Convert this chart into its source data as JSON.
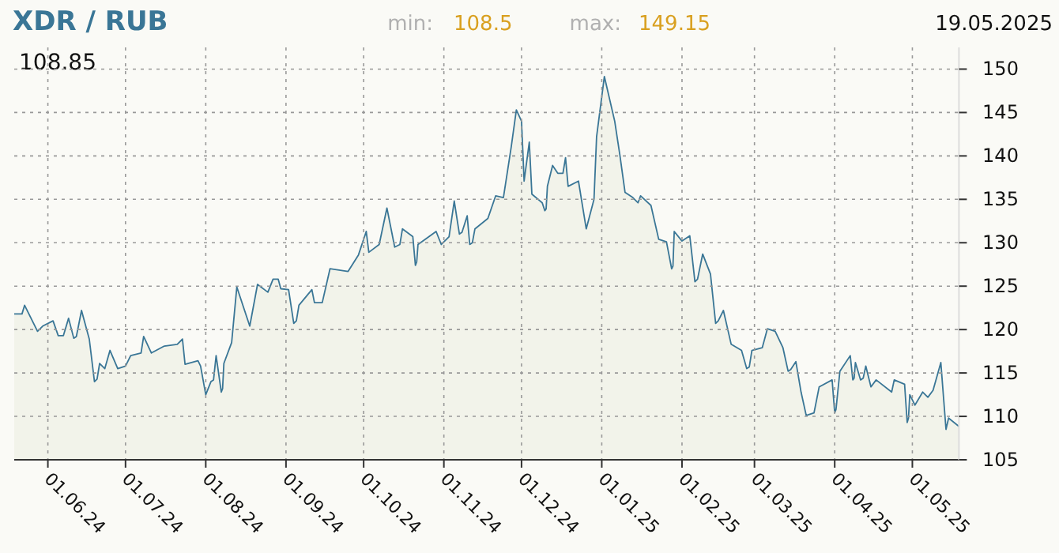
{
  "chart_data": {
    "type": "area",
    "title": "XDR / RUB",
    "annotations": [
      "108.85",
      "min:",
      "108.5",
      "max:",
      "149.15",
      "19.05.2025"
    ],
    "x": [
      "2024-05-19",
      "2024-05-22",
      "2024-05-23",
      "2024-05-28",
      "2024-05-30",
      "2024-06-03",
      "2024-06-05",
      "2024-06-07",
      "2024-06-09",
      "2024-06-11",
      "2024-06-12",
      "2024-06-14",
      "2024-06-17",
      "2024-06-19",
      "2024-06-20",
      "2024-06-21",
      "2024-06-23",
      "2024-06-25",
      "2024-06-28",
      "2024-07-01",
      "2024-07-03",
      "2024-07-07",
      "2024-07-08",
      "2024-07-11",
      "2024-07-16",
      "2024-07-21",
      "2024-07-23",
      "2024-07-24",
      "2024-07-29",
      "2024-07-30",
      "2024-08-01",
      "2024-08-03",
      "2024-08-04",
      "2024-08-05",
      "2024-08-07",
      "2024-08-07T12:00",
      "2024-08-08",
      "2024-08-11",
      "2024-08-13",
      "2024-08-16",
      "2024-08-18",
      "2024-08-21",
      "2024-08-25",
      "2024-08-27",
      "2024-08-29",
      "2024-08-30",
      "2024-09-02",
      "2024-09-04",
      "2024-09-05",
      "2024-09-06",
      "2024-09-11",
      "2024-09-12",
      "2024-09-15",
      "2024-09-18",
      "2024-09-25",
      "2024-09-29",
      "2024-10-02",
      "2024-10-03",
      "2024-10-07",
      "2024-10-10",
      "2024-10-13",
      "2024-10-15",
      "2024-10-16",
      "2024-10-20",
      "2024-10-21",
      "2024-10-21T12:00",
      "2024-10-22",
      "2024-10-29",
      "2024-10-31",
      "2024-11-03",
      "2024-11-05",
      "2024-11-07",
      "2024-11-08",
      "2024-11-10",
      "2024-11-11",
      "2024-11-12",
      "2024-11-13",
      "2024-11-18",
      "2024-11-21",
      "2024-11-24",
      "2024-11-27",
      "2024-11-29",
      "2024-12-01",
      "2024-12-02",
      "2024-12-04",
      "2024-12-05",
      "2024-12-09",
      "2024-12-10",
      "2024-12-10T12:00",
      "2024-12-11",
      "2024-12-13",
      "2024-12-15",
      "2024-12-17",
      "2024-12-18",
      "2024-12-19",
      "2024-12-23",
      "2024-12-26",
      "2024-12-29",
      "2024-12-30",
      "2025-01-02",
      "2025-01-06",
      "2025-01-08",
      "2025-01-10",
      "2025-01-13",
      "2025-01-15",
      "2025-01-16",
      "2025-01-20",
      "2025-01-23",
      "2025-01-26",
      "2025-01-28",
      "2025-01-28T12:00",
      "2025-01-29",
      "2025-02-01",
      "2025-02-04",
      "2025-02-06",
      "2025-02-07",
      "2025-02-09",
      "2025-02-12",
      "2025-02-14",
      "2025-02-15",
      "2025-02-17",
      "2025-02-20",
      "2025-02-24",
      "2025-02-26",
      "2025-02-27",
      "2025-02-28",
      "2025-03-04",
      "2025-03-06",
      "2025-03-09",
      "2025-03-12",
      "2025-03-14",
      "2025-03-15",
      "2025-03-17",
      "2025-03-19",
      "2025-03-21",
      "2025-03-24",
      "2025-03-26",
      "2025-03-31",
      "2025-04-01",
      "2025-04-01T12:00",
      "2025-04-03",
      "2025-04-07",
      "2025-04-08",
      "2025-04-08T12:00",
      "2025-04-09",
      "2025-04-11",
      "2025-04-12",
      "2025-04-13",
      "2025-04-15",
      "2025-04-17",
      "2025-04-23",
      "2025-04-24",
      "2025-04-28",
      "2025-04-29",
      "2025-04-29T12:00",
      "2025-04-30",
      "2025-05-02",
      "2025-05-05",
      "2025-05-07",
      "2025-05-09",
      "2025-05-12",
      "2025-05-14",
      "2025-05-15",
      "2025-05-19"
    ],
    "series": [
      {
        "color": "#3a7696",
        "values": [
          121.8,
          121.8,
          122.8,
          119.8,
          120.4,
          121.0,
          119.3,
          119.3,
          121.3,
          119.0,
          119.2,
          122.2,
          118.9,
          114.0,
          114.3,
          116.1,
          115.5,
          117.6,
          115.5,
          115.8,
          117.0,
          117.3,
          119.2,
          117.3,
          118.1,
          118.3,
          118.9,
          116.0,
          116.4,
          115.8,
          112.5,
          114.0,
          114.2,
          117.0,
          112.8,
          113.2,
          116.1,
          118.5,
          124.9,
          122.2,
          120.4,
          125.2,
          124.3,
          125.8,
          125.8,
          124.7,
          124.6,
          120.7,
          121.0,
          122.8,
          124.6,
          123.1,
          123.1,
          127.0,
          126.7,
          128.6,
          131.3,
          128.9,
          129.8,
          134.0,
          129.5,
          129.8,
          131.6,
          130.7,
          127.4,
          127.8,
          129.8,
          131.3,
          129.8,
          130.7,
          134.8,
          131.0,
          131.2,
          133.1,
          129.8,
          130.0,
          131.6,
          132.8,
          135.4,
          135.2,
          141.0,
          145.3,
          144.0,
          137.1,
          141.6,
          135.6,
          134.6,
          133.7,
          133.9,
          136.5,
          138.9,
          138.0,
          138.0,
          139.8,
          136.5,
          137.1,
          131.6,
          135.0,
          142.2,
          149.15,
          144.0,
          140.1,
          135.8,
          135.2,
          134.6,
          135.4,
          134.3,
          130.4,
          130.1,
          127.0,
          127.3,
          131.3,
          130.2,
          130.8,
          125.5,
          125.8,
          128.7,
          126.4,
          120.7,
          121.0,
          122.2,
          118.3,
          117.6,
          115.5,
          115.7,
          117.6,
          117.9,
          120.1,
          119.8,
          117.9,
          115.2,
          115.4,
          116.3,
          112.8,
          110.1,
          110.4,
          113.4,
          114.2,
          110.4,
          110.8,
          115.2,
          117.0,
          114.2,
          114.4,
          116.2,
          114.2,
          114.4,
          115.8,
          113.4,
          114.2,
          112.8,
          114.2,
          113.7,
          109.3,
          109.8,
          112.5,
          111.3,
          112.8,
          112.2,
          113.0,
          116.2,
          108.5,
          109.8,
          108.85
        ]
      }
    ],
    "xlim": [
      "2024-05-19",
      "2025-05-19"
    ],
    "xticks": [
      {
        "value": "2024-06-01",
        "label": "01.06.24"
      },
      {
        "value": "2024-07-01",
        "label": "01.07.24"
      },
      {
        "value": "2024-08-01",
        "label": "01.08.24"
      },
      {
        "value": "2024-09-01",
        "label": "01.09.24"
      },
      {
        "value": "2024-10-01",
        "label": "01.10.24"
      },
      {
        "value": "2024-11-01",
        "label": "01.11.24"
      },
      {
        "value": "2024-12-01",
        "label": "01.12.24"
      },
      {
        "value": "2025-01-01",
        "label": "01.01.25"
      },
      {
        "value": "2025-02-01",
        "label": "01.02.25"
      },
      {
        "value": "2025-03-01",
        "label": "01.03.25"
      },
      {
        "value": "2025-04-01",
        "label": "01.04.25"
      },
      {
        "value": "2025-05-01",
        "label": "01.05.25"
      }
    ],
    "ylim": [
      105,
      152.5
    ],
    "yticks": [
      105,
      110,
      115,
      120,
      125,
      130,
      135,
      140,
      145,
      150
    ],
    "grid": true
  }
}
